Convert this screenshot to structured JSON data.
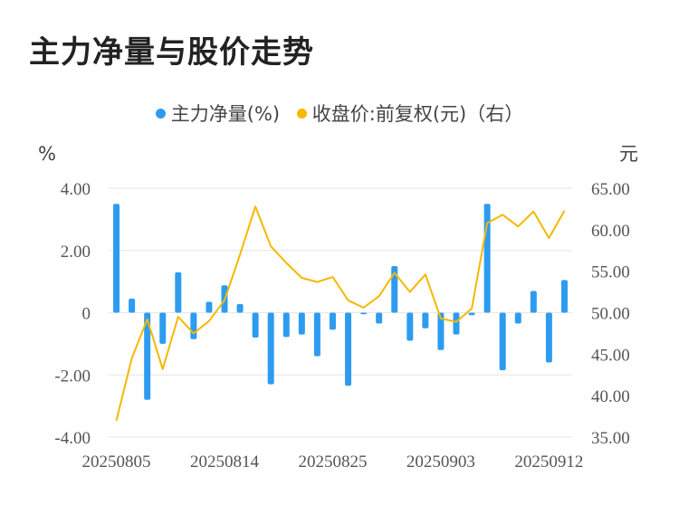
{
  "title": "主力净量与股价走势",
  "legend": {
    "series1": "主力净量(%)",
    "series2": "收盘价:前复权(元)（右）"
  },
  "colors": {
    "bar": "#2d9cf0",
    "line": "#f5b800",
    "grid": "#e6e6e6"
  },
  "chart_data": {
    "type": "bar",
    "title": "主力净量与股价走势",
    "y_left_unit": "%",
    "y_right_unit": "元",
    "y_left_ticks": [
      "4.00",
      "2.00",
      "0",
      "-2.00",
      "-4.00"
    ],
    "y_right_ticks": [
      "65.00",
      "60.00",
      "55.00",
      "50.00",
      "45.00",
      "40.00",
      "35.00"
    ],
    "ylim_left": [
      -4,
      4
    ],
    "ylim_right": [
      35,
      65
    ],
    "x_tick_labels": [
      "20250805",
      "20250814",
      "20250825",
      "20250903",
      "20250912"
    ],
    "x_tick_indices": [
      0,
      7,
      14,
      21,
      28
    ],
    "grid": true,
    "legend_position": "top",
    "series": [
      {
        "name": "主力净量(%)",
        "type": "bar",
        "axis": "left",
        "values": [
          3.5,
          0.45,
          -2.8,
          -1.0,
          1.3,
          -0.85,
          0.35,
          0.88,
          0.28,
          -0.8,
          -2.3,
          -0.78,
          -0.7,
          -1.4,
          -0.55,
          -2.35,
          -0.05,
          -0.35,
          1.5,
          -0.9,
          -0.5,
          -1.2,
          -0.7,
          -0.08,
          3.5,
          -1.85,
          -0.35,
          0.7,
          -1.6,
          1.05
        ]
      },
      {
        "name": "收盘价:前复权(元)（右）",
        "type": "line",
        "axis": "right",
        "values": [
          37.0,
          44.5,
          49.2,
          43.2,
          49.5,
          47.5,
          49.0,
          51.5,
          57.0,
          62.8,
          58.0,
          56.0,
          54.2,
          53.7,
          54.3,
          51.5,
          50.6,
          52.0,
          54.8,
          52.5,
          54.6,
          49.3,
          48.9,
          50.5,
          60.8,
          61.8,
          60.4,
          62.2,
          59.0,
          62.3
        ]
      }
    ]
  }
}
